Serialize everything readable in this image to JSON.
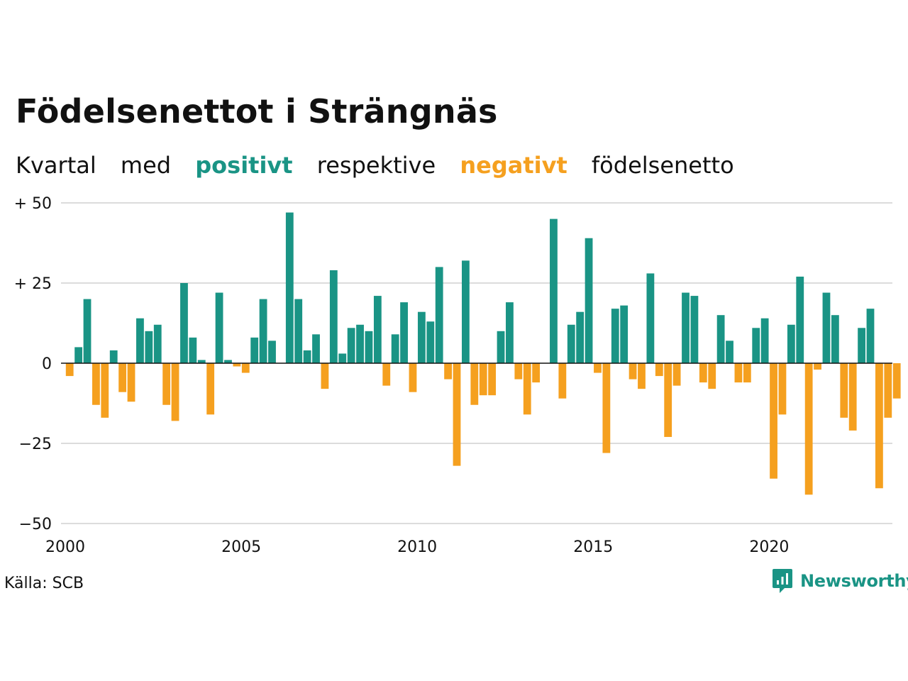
{
  "colors": {
    "positive": "#1a9485",
    "negative": "#f5a01f",
    "grid": "#dcdcdc",
    "text": "#111111"
  },
  "header": {
    "title": "Födelsenettot i Strängnäs",
    "subtitle": {
      "w1": "Kvartal",
      "w2": "med",
      "pos": "positivt",
      "w3": "respektive",
      "neg": "negativt",
      "w4": "födelsenetto"
    }
  },
  "footer": {
    "source": "Källa: SCB",
    "logo_text": "Newsworthy",
    "logo_icon": "newsworthy-chart-bubble-icon"
  },
  "chart_data": {
    "type": "bar",
    "title": "Födelsenettot i Strängnäs",
    "subtitle": "Kvartal med positivt respektive negativt födelsenetto",
    "xlabel": "",
    "ylabel": "",
    "x_unit": "quarter",
    "x_start": "2000 Q1",
    "xlim": [
      2000,
      2023.5
    ],
    "ylim": [
      -50,
      50
    ],
    "yticks": [
      {
        "value": 50,
        "label": "+ 50"
      },
      {
        "value": 25,
        "label": "+ 25"
      },
      {
        "value": 0,
        "label": "0"
      },
      {
        "value": -25,
        "label": "−25"
      },
      {
        "value": -50,
        "label": "−50"
      }
    ],
    "xticks": [
      {
        "value": 2000,
        "label": "2000"
      },
      {
        "value": 2005,
        "label": "2005"
      },
      {
        "value": 2010,
        "label": "2010"
      },
      {
        "value": 2015,
        "label": "2015"
      },
      {
        "value": 2020,
        "label": "2020"
      }
    ],
    "grid": true,
    "values": [
      -4,
      5,
      20,
      -13,
      -17,
      4,
      -9,
      -12,
      14,
      10,
      12,
      -13,
      -18,
      25,
      8,
      1,
      -16,
      22,
      1,
      -1,
      -3,
      8,
      20,
      7,
      0,
      47,
      20,
      4,
      9,
      -8,
      29,
      3,
      11,
      12,
      10,
      21,
      -7,
      9,
      19,
      -9,
      16,
      13,
      30,
      -5,
      -32,
      32,
      -13,
      -10,
      -10,
      10,
      19,
      -5,
      -16,
      -6,
      0,
      45,
      -11,
      12,
      16,
      39,
      -3,
      -28,
      17,
      18,
      -5,
      -8,
      28,
      -4,
      -23,
      -7,
      22,
      21,
      -6,
      -8,
      15,
      7,
      -6,
      -6,
      11,
      14,
      -36,
      -16,
      12,
      27,
      -41,
      -2,
      22,
      15,
      -17,
      -21,
      11,
      17,
      -39,
      -17,
      -11
    ]
  }
}
